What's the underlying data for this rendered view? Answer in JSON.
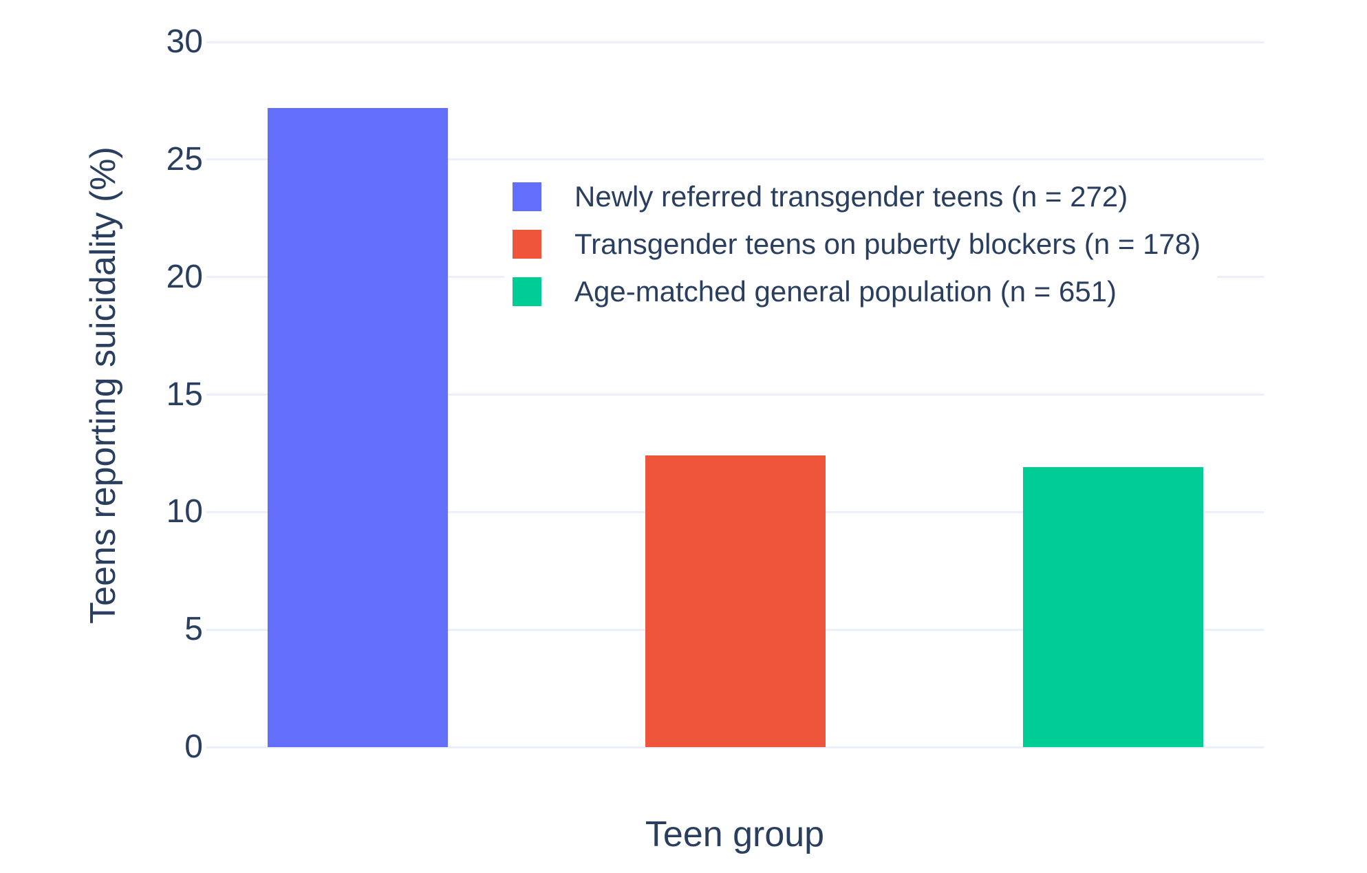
{
  "chart_data": {
    "type": "bar",
    "title": "",
    "xlabel": "Teen group",
    "ylabel": "Teens reporting suicidality (%)",
    "ylim": [
      0,
      30
    ],
    "yticks": [
      0,
      5,
      10,
      15,
      20,
      25,
      30
    ],
    "grid": true,
    "legend_position": "inside-top-center",
    "series": [
      {
        "name": "Newly referred transgender teens (n = 272)",
        "value": 27.2,
        "color": "#636EFA"
      },
      {
        "name": "Transgender teens on puberty blockers (n = 178)",
        "value": 12.4,
        "color": "#EF553B"
      },
      {
        "name": "Age-matched general population (n = 651)",
        "value": 11.9,
        "color": "#00CC96"
      }
    ],
    "colors": {
      "grid": "#EBF0F8",
      "text": "#2A3F5F",
      "background": "#FFFFFF"
    }
  }
}
